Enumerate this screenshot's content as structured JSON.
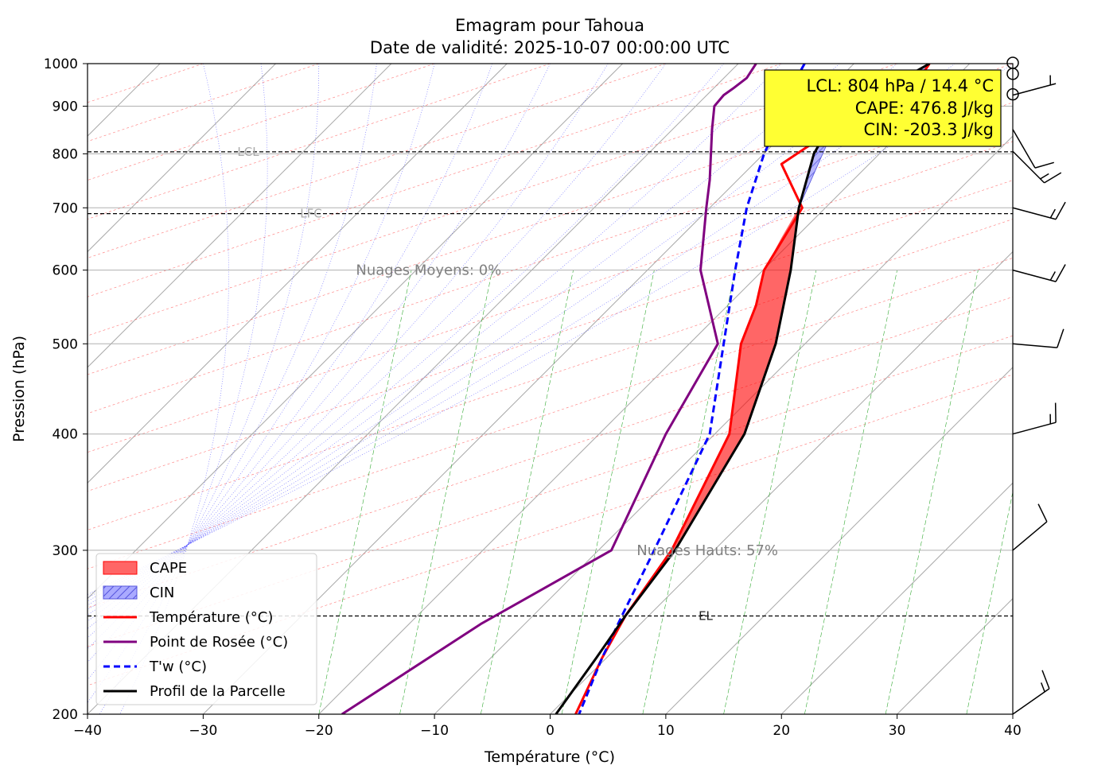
{
  "chart_data": {
    "type": "line",
    "title": "Emagram pour Tahoua",
    "subtitle": "Date de validité: 2025-10-07 00:00:00 UTC",
    "xlabel": "Température (°C)",
    "ylabel": "Pression (hPa)",
    "xlim": [
      -40,
      40
    ],
    "ylim": [
      1000,
      200
    ],
    "y_scale": "log",
    "x_ticks": [
      "−40",
      "−30",
      "−20",
      "−10",
      "0",
      "10",
      "20",
      "30",
      "40"
    ],
    "y_ticks": [
      "200",
      "300",
      "400",
      "500",
      "600",
      "700",
      "800",
      "900",
      "1000"
    ],
    "grid": true,
    "legend_position": "lower-left",
    "info_box": {
      "lines": [
        "LCL: 804 hPa / 14.4 °C",
        "CAPE: 476.8 J/kg",
        "CIN: -203.3 J/kg"
      ],
      "background": "#ffff33"
    },
    "level_lines": [
      {
        "label": "EL",
        "pressure": 255
      },
      {
        "label": "LFC",
        "pressure": 690
      },
      {
        "label": "LCL",
        "pressure": 804
      }
    ],
    "cloud_labels": [
      {
        "text": "Nuages Hauts: 57%",
        "pressure": 300,
        "x": 7
      },
      {
        "text": "Nuages Moyens: 0%",
        "pressure": 600,
        "x": -17
      }
    ],
    "legend": [
      {
        "label": "CAPE",
        "kind": "fill",
        "color": "#ff6666"
      },
      {
        "label": "CIN",
        "kind": "hatch",
        "color": "#aaaaff"
      },
      {
        "label": "Température (°C)",
        "kind": "line",
        "color": "#ff0000"
      },
      {
        "label": "Point de Rosée (°C)",
        "kind": "line",
        "color": "#800080"
      },
      {
        "label": "T'w (°C)",
        "kind": "dashed",
        "color": "#0000ff"
      },
      {
        "label": "Profil de la Parcelle",
        "kind": "line",
        "color": "#000000"
      }
    ],
    "series": [
      {
        "name": "Température (°C)",
        "color": "#ff0000",
        "points": [
          [
            32.8,
            1000
          ],
          [
            32.2,
            975
          ],
          [
            31.8,
            950
          ],
          [
            31.2,
            925
          ],
          [
            30.6,
            910
          ],
          [
            24.5,
            850
          ],
          [
            20,
            780
          ],
          [
            21.8,
            700
          ],
          [
            18.5,
            600
          ],
          [
            17.8,
            550
          ],
          [
            16.5,
            500
          ],
          [
            15.5,
            400
          ],
          [
            10.5,
            300
          ],
          [
            6.5,
            255
          ],
          [
            4.5,
            230
          ],
          [
            2.2,
            200
          ]
        ]
      },
      {
        "name": "Point de Rosée (°C)",
        "color": "#800080",
        "points": [
          [
            17.8,
            1000
          ],
          [
            17,
            965
          ],
          [
            15.8,
            940
          ],
          [
            15,
            925
          ],
          [
            14.2,
            900
          ],
          [
            14,
            850
          ],
          [
            13.9,
            800
          ],
          [
            13.8,
            750
          ],
          [
            13.5,
            700
          ],
          [
            13,
            600
          ],
          [
            14.5,
            500
          ],
          [
            10,
            400
          ],
          [
            5.3,
            300
          ],
          [
            -6,
            250
          ],
          [
            -18,
            200
          ]
        ]
      },
      {
        "name": "T'w (°C)",
        "color": "#0000ff",
        "points": [
          [
            22,
            1000
          ],
          [
            20.5,
            925
          ],
          [
            20,
            900
          ],
          [
            19.5,
            850
          ],
          [
            18.5,
            800
          ],
          [
            17,
            700
          ],
          [
            16,
            600
          ],
          [
            15,
            500
          ],
          [
            13.8,
            400
          ],
          [
            9,
            300
          ],
          [
            6.2,
            255
          ],
          [
            4.5,
            230
          ],
          [
            2.5,
            200
          ]
        ]
      },
      {
        "name": "Profil de la Parcelle",
        "color": "#000000",
        "points": [
          [
            32.8,
            1000
          ],
          [
            28,
            925
          ],
          [
            24,
            850
          ],
          [
            22.8,
            800
          ],
          [
            21.5,
            700
          ],
          [
            20.8,
            600
          ],
          [
            19.5,
            500
          ],
          [
            16.8,
            400
          ],
          [
            10.8,
            300
          ],
          [
            6.5,
            255
          ],
          [
            4,
            230
          ],
          [
            0.5,
            200
          ]
        ]
      }
    ],
    "cape_region": {
      "upper": [
        [
          21.5,
          700
        ],
        [
          20.8,
          600
        ],
        [
          19.5,
          500
        ],
        [
          16.8,
          400
        ],
        [
          10.8,
          300
        ],
        [
          6.5,
          255
        ]
      ],
      "lower": [
        [
          21.5,
          700
        ],
        [
          20,
          650
        ],
        [
          18.5,
          600
        ],
        [
          17.8,
          550
        ],
        [
          16.5,
          500
        ],
        [
          15.5,
          400
        ],
        [
          10.5,
          300
        ],
        [
          6.5,
          255
        ]
      ]
    },
    "cin_region": {
      "upper": [
        [
          32.8,
          1000
        ],
        [
          32.2,
          975
        ],
        [
          31.8,
          950
        ],
        [
          31.2,
          925
        ],
        [
          30.6,
          910
        ],
        [
          24.5,
          850
        ],
        [
          21.5,
          700
        ]
      ],
      "lower": [
        [
          32.8,
          1000
        ],
        [
          28,
          925
        ],
        [
          24,
          850
        ],
        [
          22.8,
          800
        ],
        [
          21.5,
          700
        ]
      ]
    },
    "wind_barbs": [
      {
        "pressure": 200,
        "speed_kt": 15,
        "direction_deg": 305
      },
      {
        "pressure": 300,
        "speed_kt": 10,
        "direction_deg": 310
      },
      {
        "pressure": 400,
        "speed_kt": 15,
        "direction_deg": 285
      },
      {
        "pressure": 500,
        "speed_kt": 10,
        "direction_deg": 265
      },
      {
        "pressure": 600,
        "speed_kt": 15,
        "direction_deg": 255
      },
      {
        "pressure": 700,
        "speed_kt": 15,
        "direction_deg": 255
      },
      {
        "pressure": 805,
        "speed_kt": 15,
        "direction_deg": 225
      },
      {
        "pressure": 850,
        "speed_kt": 10,
        "direction_deg": 210
      },
      {
        "pressure": 925,
        "speed_kt": 5,
        "direction_deg": 75
      },
      {
        "pressure": 925,
        "speed_kt": 0,
        "direction_deg": 0
      },
      {
        "pressure": 975,
        "speed_kt": 0,
        "direction_deg": 0
      },
      {
        "pressure": 1000,
        "speed_kt": 0,
        "direction_deg": 0
      }
    ]
  }
}
